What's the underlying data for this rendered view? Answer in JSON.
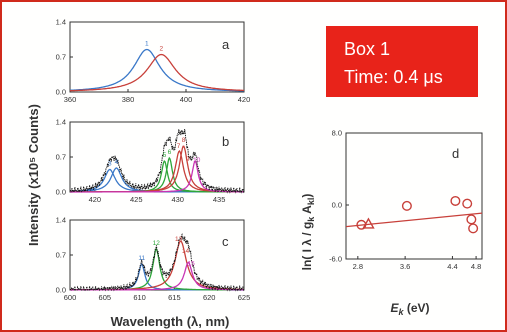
{
  "colors": {
    "frame": "#d02a1c",
    "box_fill": "#e8231a",
    "box_text": "#ffffff",
    "axis": "#333333",
    "blue": "#3a78c8",
    "red": "#c8403a",
    "green": "#2ea63a",
    "magenta": "#c834b4",
    "black": "#111111",
    "fit": "#c8403a"
  },
  "box": {
    "line1": "Box 1",
    "line2": "Time: 0.4 μs"
  },
  "shared": {
    "ylabel": "Intensity (x10⁵ Counts)",
    "xlabel": "Wavelength (λ, nm)"
  },
  "chart_data": [
    {
      "panel": "a",
      "type": "line",
      "xlim": [
        360,
        420
      ],
      "ylim": [
        0,
        1.4
      ],
      "xticks": [
        360,
        380,
        400,
        420
      ],
      "yticks": [
        0.0,
        0.7,
        1.4
      ],
      "ytick_labels": [
        "0.0",
        "0.7",
        "1.4"
      ],
      "series": [
        {
          "color": "blue",
          "peak": 386.5,
          "amp": 0.85,
          "width": 5.5
        },
        {
          "color": "red",
          "peak": 391.5,
          "amp": 0.75,
          "width": 6.0
        }
      ],
      "peak_labels": [
        {
          "text": "1",
          "x": 386.5,
          "color": "blue"
        },
        {
          "text": "2",
          "x": 391.5,
          "color": "red"
        }
      ]
    },
    {
      "panel": "b",
      "type": "line",
      "xlim": [
        417,
        438
      ],
      "ylim": [
        0,
        1.4
      ],
      "xticks": [
        420,
        425,
        430,
        435
      ],
      "yticks": [
        0.0,
        0.7,
        1.4
      ],
      "ytick_labels": [
        "0.0",
        "0.7",
        "1.4"
      ],
      "series": [
        {
          "color": "blue",
          "peak": 421.8,
          "amp": 0.45,
          "width": 0.8
        },
        {
          "color": "blue",
          "peak": 422.6,
          "amp": 0.48,
          "width": 0.8
        },
        {
          "color": "green",
          "peak": 428.4,
          "amp": 0.62,
          "width": 0.45
        },
        {
          "color": "green",
          "peak": 429.0,
          "amp": 0.68,
          "width": 0.45
        },
        {
          "color": "red",
          "peak": 430.2,
          "amp": 0.82,
          "width": 0.6
        },
        {
          "color": "red",
          "peak": 430.7,
          "amp": 0.92,
          "width": 0.6
        },
        {
          "color": "magenta",
          "peak": 432.1,
          "amp": 0.62,
          "width": 0.45
        }
      ],
      "peak_labels": [
        {
          "text": "3",
          "x": 421.8,
          "color": "blue"
        },
        {
          "text": "4",
          "x": 422.6,
          "color": "blue"
        },
        {
          "text": "5",
          "x": 428.4,
          "color": "green"
        },
        {
          "text": "6",
          "x": 429.0,
          "color": "green"
        },
        {
          "text": "7",
          "x": 430.1,
          "color": "red"
        },
        {
          "text": "8",
          "x": 430.7,
          "color": "red"
        },
        {
          "text": "9",
          "x": 431.2,
          "color": "red"
        },
        {
          "text": "10",
          "x": 432.3,
          "color": "magenta"
        }
      ]
    },
    {
      "panel": "c",
      "type": "line",
      "xlim": [
        600,
        625
      ],
      "ylim": [
        0,
        1.4
      ],
      "xticks": [
        600,
        605,
        610,
        615,
        620,
        625
      ],
      "yticks": [
        0.0,
        0.7,
        1.4
      ],
      "ytick_labels": [
        "0.0",
        "0.7",
        "1.4"
      ],
      "series": [
        {
          "color": "blue",
          "peak": 610.3,
          "amp": 0.52,
          "width": 0.55
        },
        {
          "color": "green",
          "peak": 612.4,
          "amp": 0.82,
          "width": 0.6
        },
        {
          "color": "red",
          "peak": 615.9,
          "amp": 0.98,
          "width": 1.0
        },
        {
          "color": "magenta",
          "peak": 617.0,
          "amp": 0.55,
          "width": 0.7
        }
      ],
      "peak_labels": [
        {
          "text": "11",
          "x": 610.3,
          "color": "blue"
        },
        {
          "text": "12",
          "x": 612.4,
          "color": "green"
        },
        {
          "text": "13",
          "x": 615.6,
          "color": "red"
        },
        {
          "text": "14",
          "x": 616.6,
          "color": "red"
        },
        {
          "text": "15",
          "x": 617.4,
          "color": "magenta"
        }
      ]
    },
    {
      "panel": "d",
      "type": "scatter",
      "xlabel_main": "E",
      "xlabel_sub": "k",
      "xlabel_rest": " (eV)",
      "ylabel": "ln( I λ / g",
      "ylabel_sub1": "k",
      "ylabel_mid": " A",
      "ylabel_sub2": "kl",
      "ylabel_end": ")",
      "xlim": [
        2.6,
        4.9
      ],
      "ylim": [
        -6.0,
        8.0
      ],
      "xticks": [
        2.8,
        3.6,
        4.4,
        4.8
      ],
      "xtick_labels": [
        "2.8",
        "3.6",
        "4.4",
        "4.8"
      ],
      "yticks": [
        8.0,
        0.0,
        -6.0
      ],
      "ytick_labels": [
        "8.0",
        "0.0",
        "-6.0"
      ],
      "circles": [
        {
          "x": 2.86,
          "y": -2.2
        },
        {
          "x": 3.63,
          "y": -0.1
        },
        {
          "x": 4.45,
          "y": 0.45
        },
        {
          "x": 4.65,
          "y": 0.15
        },
        {
          "x": 4.72,
          "y": -1.6
        },
        {
          "x": 4.75,
          "y": -2.6
        }
      ],
      "triangles": [
        {
          "x": 2.98,
          "y": -2.1
        }
      ],
      "fit": {
        "x": [
          2.6,
          4.9
        ],
        "y": [
          -2.4,
          -0.9
        ]
      }
    }
  ]
}
